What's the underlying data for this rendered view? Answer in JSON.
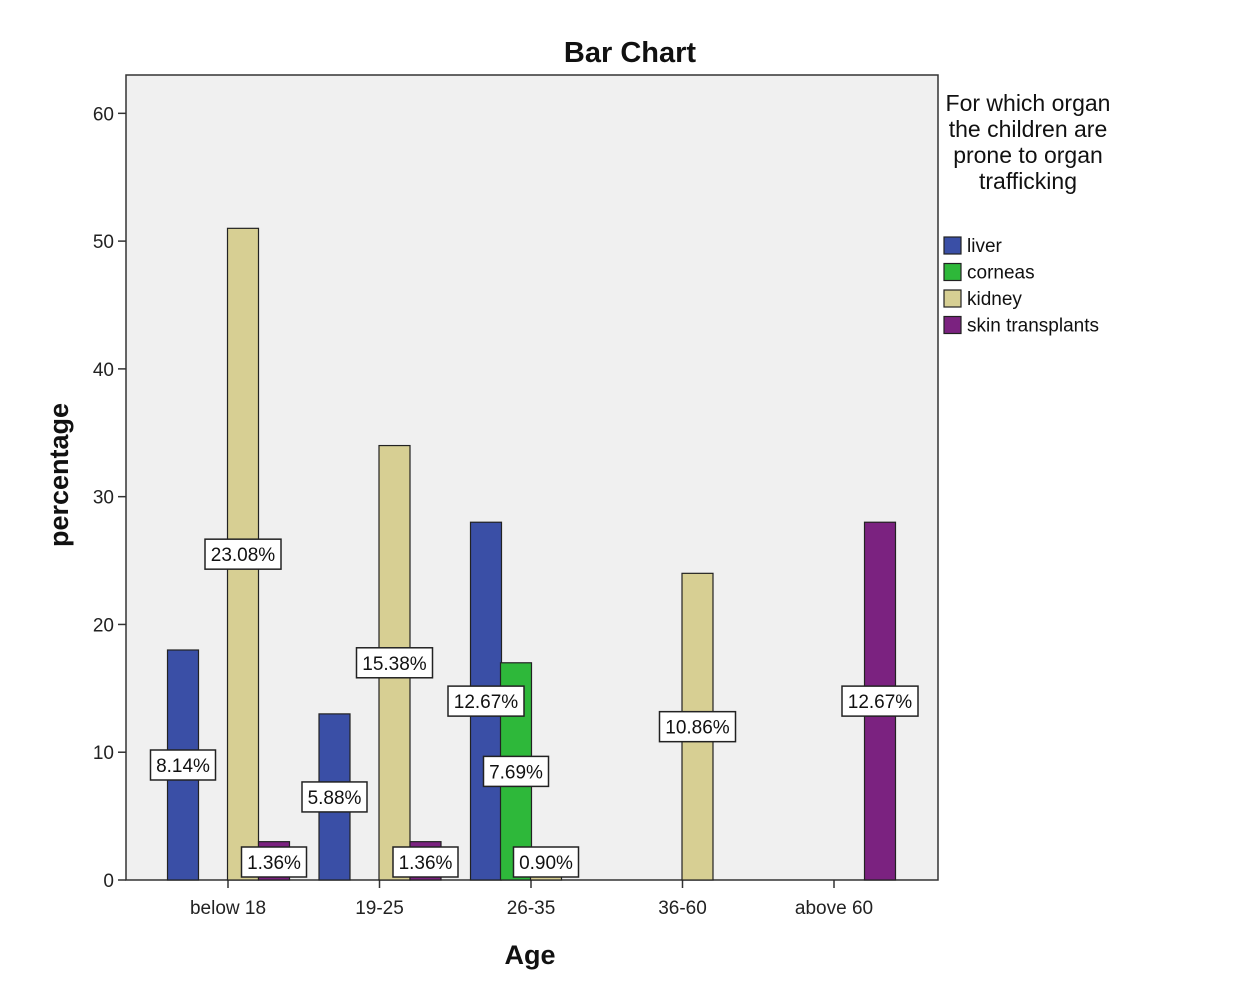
{
  "chart_data": {
    "type": "bar",
    "title": "Bar Chart",
    "xlabel": "Age",
    "ylabel": "percentage",
    "categories": [
      "below 18",
      "19-25",
      "26-35",
      "36-60",
      "above 60"
    ],
    "ylim": [
      0,
      63
    ],
    "yticks": [
      0,
      10,
      20,
      30,
      40,
      50,
      60
    ],
    "legend_title": "For which organ the children are prone to organ trafficking",
    "legend_position": "right",
    "series": [
      {
        "name": "liver",
        "color": "#3a4fa6",
        "values": [
          18,
          13,
          28,
          null,
          null
        ],
        "labels": [
          "8.14%",
          "5.88%",
          "12.67%",
          "",
          ""
        ]
      },
      {
        "name": "corneas",
        "color": "#2eb83a",
        "values": [
          null,
          null,
          17,
          null,
          null
        ],
        "labels": [
          "",
          "",
          "7.69%",
          "",
          ""
        ]
      },
      {
        "name": "kidney",
        "color": "#d7cf93",
        "values": [
          51,
          34,
          2,
          24,
          null
        ],
        "labels": [
          "23.08%",
          "15.38%",
          "0.90%",
          "10.86%",
          ""
        ]
      },
      {
        "name": "skin transplants",
        "color": "#7b2280",
        "values": [
          3,
          3,
          null,
          null,
          28
        ],
        "labels": [
          "1.36%",
          "1.36%",
          "",
          "",
          "12.67%"
        ]
      }
    ]
  }
}
